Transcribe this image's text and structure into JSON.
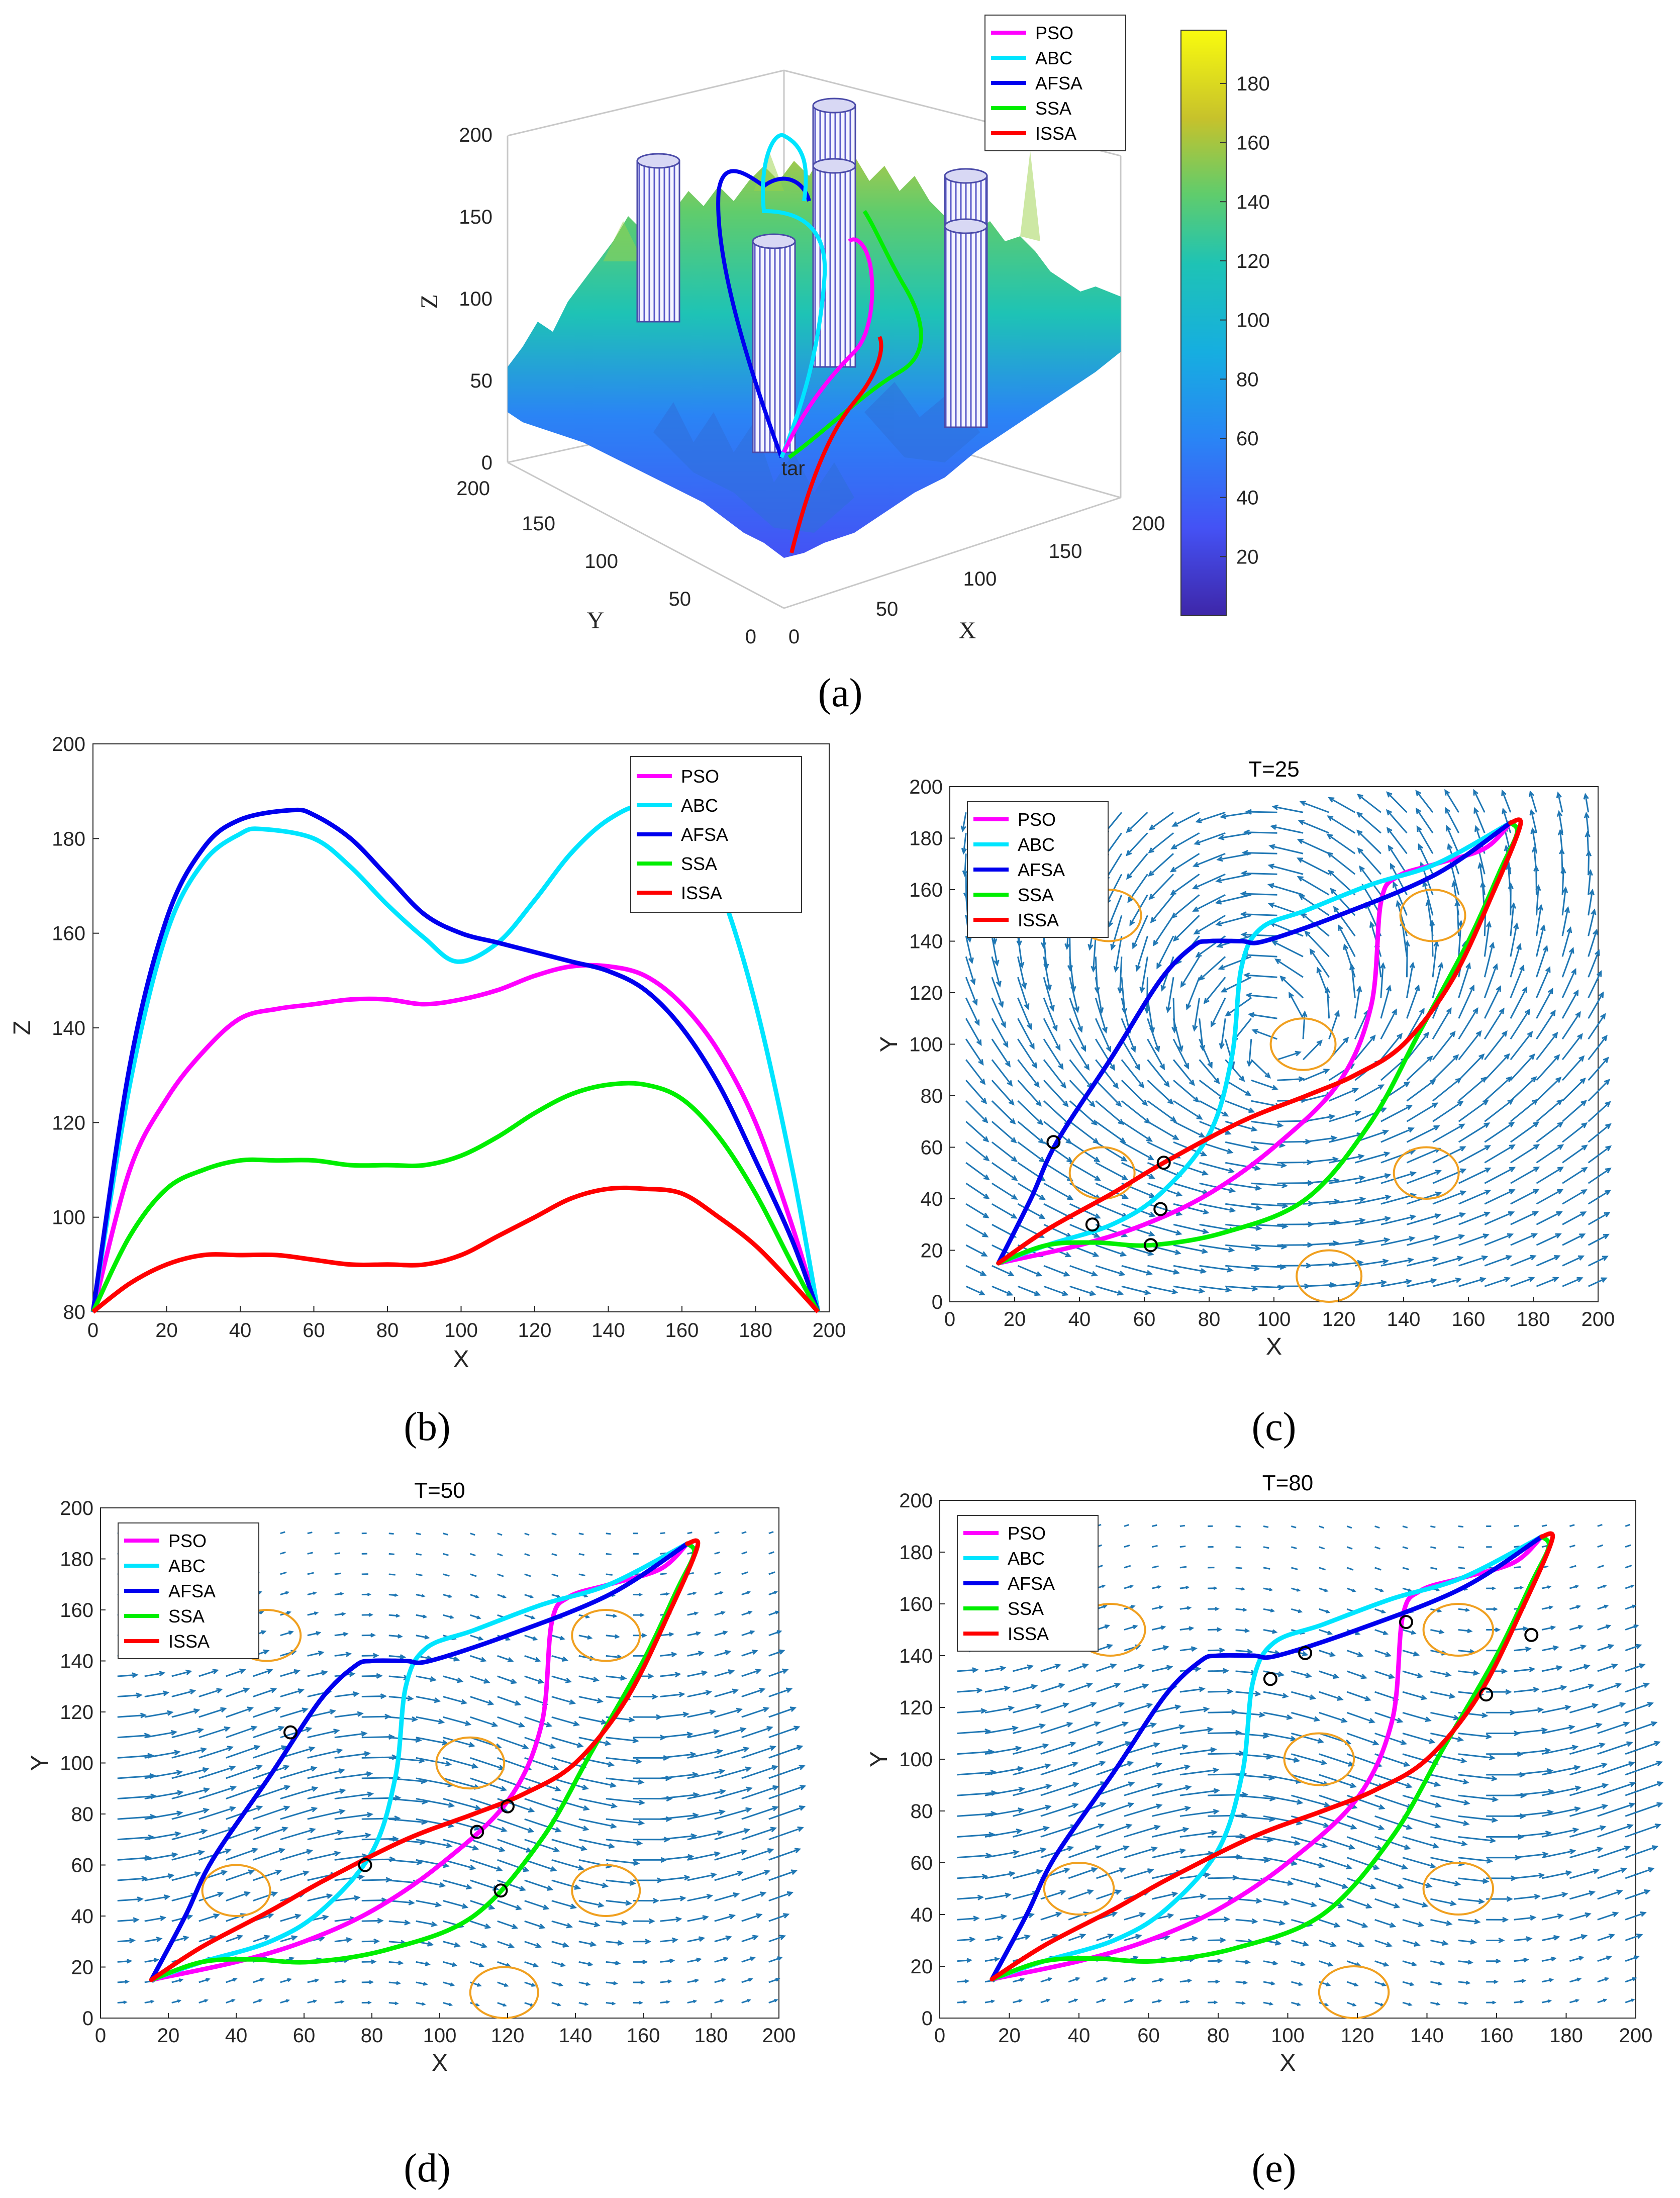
{
  "figure": {
    "captions": [
      "(a)",
      "(b)",
      "(c)",
      "(d)",
      "(e)"
    ],
    "colors": {
      "PSO": "#ff00ff",
      "ABC": "#00e5ff",
      "AFSA": "#0000ee",
      "SSA": "#00ee00",
      "ISSA": "#ff0000",
      "threat_circle": "#f0a020",
      "wind_arrow": "#1f77b4"
    }
  },
  "chart_data": [
    {
      "id": "a",
      "type": "surface3d",
      "xlabel": "X",
      "ylabel": "Y",
      "zlabel": "Z",
      "x_ticks": [
        "0",
        "50",
        "100",
        "150",
        "200"
      ],
      "y_ticks": [
        "0",
        "50",
        "100",
        "150",
        "200"
      ],
      "z_ticks": [
        "0",
        "50",
        "100",
        "150",
        "200"
      ],
      "colorbar_ticks": [
        "20",
        "40",
        "60",
        "80",
        "100",
        "120",
        "140",
        "160",
        "180"
      ],
      "colorbar_range": [
        0,
        198
      ],
      "start_label": "tar",
      "legend": [
        "PSO",
        "ABC",
        "AFSA",
        "SSA",
        "ISSA"
      ]
    },
    {
      "id": "b",
      "type": "line",
      "xlabel": "X",
      "ylabel": "Z",
      "xlim": [
        0,
        200
      ],
      "ylim": [
        80,
        200
      ],
      "x_ticks": [
        "0",
        "20",
        "40",
        "60",
        "80",
        "100",
        "120",
        "140",
        "160",
        "180",
        "200"
      ],
      "y_ticks": [
        "80",
        "100",
        "120",
        "140",
        "160",
        "180",
        "200"
      ],
      "legend": [
        "PSO",
        "ABC",
        "AFSA",
        "SSA",
        "ISSA"
      ],
      "series": [
        {
          "name": "PSO",
          "x": [
            0,
            10,
            20,
            30,
            40,
            50,
            60,
            70,
            80,
            90,
            100,
            110,
            120,
            130,
            140,
            150,
            160,
            170,
            180,
            190,
            197
          ],
          "y": [
            80,
            110,
            125,
            135,
            142,
            144,
            145,
            146,
            146,
            145,
            146,
            148,
            151,
            153,
            153,
            151,
            145,
            135,
            120,
            98,
            80
          ]
        },
        {
          "name": "ABC",
          "x": [
            0,
            10,
            20,
            30,
            40,
            46,
            60,
            70,
            80,
            90,
            99,
            110,
            120,
            130,
            140,
            150,
            160,
            170,
            180,
            190,
            197
          ],
          "y": [
            80,
            128,
            160,
            175,
            181,
            182,
            180,
            174,
            166,
            159,
            154,
            158,
            167,
            177,
            184,
            187,
            183,
            170,
            145,
            110,
            80
          ]
        },
        {
          "name": "AFSA",
          "x": [
            0,
            10,
            20,
            30,
            40,
            54,
            60,
            70,
            80,
            90,
            100,
            110,
            120,
            130,
            140,
            150,
            160,
            170,
            180,
            190,
            197
          ],
          "y": [
            80,
            132,
            163,
            178,
            184,
            186,
            185,
            180,
            172,
            164,
            160,
            158,
            156,
            154,
            152,
            148,
            140,
            128,
            112,
            95,
            80
          ]
        },
        {
          "name": "SSA",
          "x": [
            0,
            10,
            20,
            30,
            40,
            50,
            60,
            70,
            80,
            90,
            100,
            110,
            120,
            130,
            140,
            150,
            160,
            170,
            180,
            190,
            197
          ],
          "y": [
            80,
            96,
            106,
            110,
            112,
            112,
            112,
            111,
            111,
            111,
            113,
            117,
            122,
            126,
            128,
            128,
            125,
            117,
            105,
            90,
            80
          ]
        },
        {
          "name": "ISSA",
          "x": [
            0,
            10,
            20,
            30,
            40,
            50,
            60,
            70,
            80,
            90,
            100,
            110,
            120,
            130,
            140,
            150,
            160,
            170,
            180,
            190,
            197
          ],
          "y": [
            80,
            86,
            90,
            92,
            92,
            92,
            91,
            90,
            90,
            90,
            92,
            96,
            100,
            104,
            106,
            106,
            105,
            100,
            94,
            86,
            80
          ]
        }
      ]
    },
    {
      "id": "c",
      "type": "quiver_paths",
      "title": "T=25",
      "xlabel": "X",
      "ylabel": "Y",
      "xlim": [
        0,
        200
      ],
      "ylim": [
        0,
        200
      ],
      "x_ticks": [
        "0",
        "20",
        "40",
        "60",
        "80",
        "100",
        "120",
        "140",
        "160",
        "180",
        "200"
      ],
      "y_ticks": [
        "0",
        "20",
        "40",
        "60",
        "80",
        "100",
        "120",
        "140",
        "160",
        "180",
        "200"
      ],
      "legend": [
        "PSO",
        "ABC",
        "AFSA",
        "SSA",
        "ISSA"
      ],
      "threat_circles": [
        {
          "x": 47,
          "y": 50
        },
        {
          "x": 117,
          "y": 10
        },
        {
          "x": 147,
          "y": 50
        },
        {
          "x": 109,
          "y": 100
        },
        {
          "x": 149,
          "y": 150
        },
        {
          "x": 49,
          "y": 150
        }
      ],
      "markers": [
        {
          "x": 32,
          "y": 62
        },
        {
          "x": 44,
          "y": 30
        },
        {
          "x": 66,
          "y": 54
        },
        {
          "x": 65,
          "y": 36
        },
        {
          "x": 62,
          "y": 22
        }
      ],
      "flow": "vortex"
    },
    {
      "id": "d",
      "type": "quiver_paths",
      "title": "T=50",
      "xlabel": "X",
      "ylabel": "Y",
      "xlim": [
        0,
        200
      ],
      "ylim": [
        0,
        200
      ],
      "x_ticks": [
        "0",
        "20",
        "40",
        "60",
        "80",
        "100",
        "120",
        "140",
        "160",
        "180",
        "200"
      ],
      "y_ticks": [
        "0",
        "20",
        "40",
        "60",
        "80",
        "100",
        "120",
        "140",
        "160",
        "180",
        "200"
      ],
      "legend": [
        "PSO",
        "ABC",
        "AFSA",
        "SSA",
        "ISSA"
      ],
      "threat_circles": [
        {
          "x": 40,
          "y": 50
        },
        {
          "x": 119,
          "y": 10
        },
        {
          "x": 149,
          "y": 50
        },
        {
          "x": 109,
          "y": 100
        },
        {
          "x": 149,
          "y": 150
        },
        {
          "x": 49,
          "y": 150
        }
      ],
      "markers": [
        {
          "x": 56,
          "y": 112
        },
        {
          "x": 78,
          "y": 60
        },
        {
          "x": 111,
          "y": 73
        },
        {
          "x": 120,
          "y": 83
        },
        {
          "x": 118,
          "y": 50
        }
      ],
      "flow": "wave"
    },
    {
      "id": "e",
      "type": "quiver_paths",
      "title": "T=80",
      "xlabel": "X",
      "ylabel": "Y",
      "xlim": [
        0,
        200
      ],
      "ylim": [
        0,
        200
      ],
      "x_ticks": [
        "0",
        "20",
        "40",
        "60",
        "80",
        "100",
        "120",
        "140",
        "160",
        "180",
        "200"
      ],
      "y_ticks": [
        "0",
        "20",
        "40",
        "60",
        "80",
        "100",
        "120",
        "140",
        "160",
        "180",
        "200"
      ],
      "legend": [
        "PSO",
        "ABC",
        "AFSA",
        "SSA",
        "ISSA"
      ],
      "threat_circles": [
        {
          "x": 40,
          "y": 50
        },
        {
          "x": 119,
          "y": 10
        },
        {
          "x": 149,
          "y": 50
        },
        {
          "x": 109,
          "y": 100
        },
        {
          "x": 149,
          "y": 150
        },
        {
          "x": 49,
          "y": 150
        }
      ],
      "markers": [
        {
          "x": 95,
          "y": 131
        },
        {
          "x": 105,
          "y": 141
        },
        {
          "x": 134,
          "y": 153
        },
        {
          "x": 170,
          "y": 148
        },
        {
          "x": 157,
          "y": 125
        }
      ],
      "flow": "wave"
    }
  ],
  "paths2d": [
    {
      "name": "PSO",
      "x": [
        15,
        40,
        60,
        80,
        100,
        120,
        130,
        133,
        138,
        150,
        165,
        173
      ],
      "y": [
        15,
        22,
        30,
        42,
        60,
        85,
        115,
        155,
        165,
        170,
        176,
        186
      ]
    },
    {
      "name": "ABC",
      "x": [
        15,
        30,
        50,
        65,
        80,
        87,
        90,
        96,
        110,
        130,
        150,
        173
      ],
      "y": [
        15,
        22,
        30,
        42,
        65,
        95,
        130,
        145,
        152,
        162,
        170,
        186
      ]
    },
    {
      "name": "AFSA",
      "x": [
        15,
        25,
        33,
        50,
        65,
        75,
        80,
        90,
        97,
        120,
        150,
        173
      ],
      "y": [
        15,
        40,
        62,
        95,
        125,
        138,
        140,
        140,
        140,
        150,
        166,
        186
      ]
    },
    {
      "name": "SSA",
      "x": [
        15,
        30,
        45,
        62,
        85,
        110,
        130,
        145,
        160,
        170,
        175,
        173
      ],
      "y": [
        15,
        22,
        23,
        22,
        27,
        40,
        70,
        105,
        140,
        168,
        182,
        186
      ]
    },
    {
      "name": "ISSA",
      "x": [
        15,
        30,
        50,
        66,
        90,
        110,
        125,
        140,
        155,
        168,
        176,
        173
      ],
      "y": [
        15,
        28,
        42,
        54,
        70,
        80,
        88,
        100,
        125,
        160,
        185,
        186
      ]
    }
  ]
}
